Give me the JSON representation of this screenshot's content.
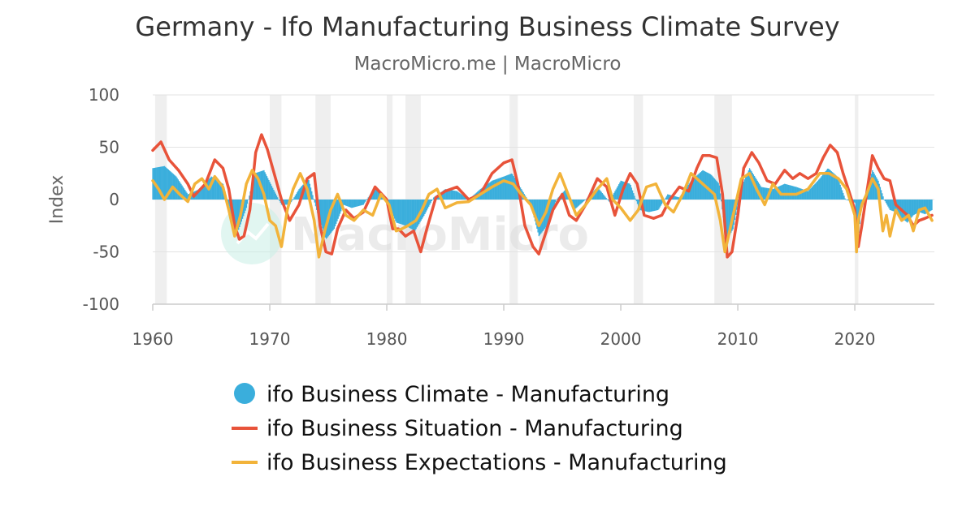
{
  "chart_data": {
    "type": "line",
    "title": "Germany - Ifo Manufacturing Business Climate Survey",
    "subtitle": "MacroMicro.me | MacroMicro",
    "watermark": "MacroMicro",
    "ylabel": "Index",
    "xlabel": "",
    "xlim": [
      1960,
      2026.8
    ],
    "ylim": [
      -100,
      100
    ],
    "yticks": [
      100,
      50,
      0,
      -50,
      -100
    ],
    "xticks": [
      1960,
      1970,
      1980,
      1990,
      2000,
      2010,
      2020
    ],
    "grid": true,
    "legend_position": "bottom",
    "recession_shading": [
      [
        1960.2,
        1961.2
      ],
      [
        1970.0,
        1971.0
      ],
      [
        1973.9,
        1975.2
      ],
      [
        1980.0,
        1980.5
      ],
      [
        1981.6,
        1982.9
      ],
      [
        1990.5,
        1991.2
      ],
      [
        2001.1,
        2001.9
      ],
      [
        2008.0,
        2009.5
      ],
      [
        2020.0,
        2020.3
      ]
    ],
    "series": [
      {
        "name": "ifo Business Climate - Manufacturing",
        "style": "column",
        "color": "#3aaedc",
        "x": [
          1960.0,
          1961.0,
          1962.0,
          1963.0,
          1964.0,
          1965.0,
          1966.0,
          1966.7,
          1967.3,
          1968.0,
          1968.7,
          1969.5,
          1970.3,
          1971.0,
          1971.7,
          1972.5,
          1973.3,
          1974.0,
          1974.8,
          1975.5,
          1976.3,
          1977.0,
          1978.0,
          1979.0,
          1980.0,
          1980.8,
          1981.6,
          1982.4,
          1983.2,
          1984.0,
          1985.0,
          1986.0,
          1987.0,
          1988.0,
          1989.0,
          1990.0,
          1990.7,
          1991.5,
          1992.3,
          1993.0,
          1993.7,
          1994.5,
          1995.3,
          1996.0,
          1997.0,
          1998.0,
          1999.0,
          2000.0,
          2000.8,
          2001.6,
          2002.4,
          2003.2,
          2004.0,
          2005.0,
          2006.0,
          2007.0,
          2007.7,
          2008.4,
          2009.0,
          2009.6,
          2010.3,
          2011.0,
          2012.0,
          2013.0,
          2014.0,
          2015.0,
          2016.0,
          2017.0,
          2017.7,
          2018.5,
          2019.2,
          2020.0,
          2020.3,
          2020.6,
          2021.0,
          2021.5,
          2022.0,
          2022.5,
          2023.0,
          2023.5,
          2024.0,
          2024.5,
          2025.0,
          2025.5,
          2026.0,
          2026.6
        ],
        "values": [
          30,
          32,
          22,
          5,
          10,
          22,
          15,
          -15,
          -30,
          -8,
          25,
          28,
          10,
          -5,
          -5,
          10,
          20,
          -10,
          -38,
          -28,
          -5,
          -8,
          -5,
          12,
          0,
          -22,
          -25,
          -30,
          -15,
          2,
          10,
          8,
          0,
          10,
          18,
          22,
          25,
          10,
          -5,
          -35,
          -25,
          0,
          10,
          -10,
          0,
          12,
          -2,
          18,
          15,
          -10,
          -12,
          -10,
          5,
          2,
          18,
          28,
          24,
          15,
          -40,
          -28,
          12,
          30,
          12,
          10,
          15,
          12,
          8,
          20,
          30,
          22,
          0,
          -3,
          -35,
          -5,
          8,
          28,
          18,
          0,
          -10,
          -12,
          -18,
          -22,
          -15,
          -12,
          -14,
          -10
        ]
      },
      {
        "name": "ifo Business Situation - Manufacturing",
        "style": "line",
        "color": "#e8533a",
        "x": [
          1960.0,
          1960.7,
          1961.4,
          1962.2,
          1963.0,
          1963.5,
          1964.5,
          1965.3,
          1966.0,
          1966.5,
          1967.0,
          1967.4,
          1967.8,
          1968.3,
          1968.8,
          1969.3,
          1969.8,
          1970.5,
          1971.0,
          1971.7,
          1972.5,
          1973.2,
          1973.8,
          1974.3,
          1974.8,
          1975.3,
          1975.8,
          1976.5,
          1977.2,
          1978.0,
          1979.0,
          1980.0,
          1980.5,
          1981.0,
          1981.6,
          1982.3,
          1982.9,
          1983.5,
          1984.2,
          1985.0,
          1986.0,
          1987.0,
          1988.0,
          1989.0,
          1990.0,
          1990.7,
          1991.2,
          1991.8,
          1992.5,
          1993.0,
          1993.5,
          1994.2,
          1995.0,
          1995.6,
          1996.2,
          1997.0,
          1998.0,
          1998.8,
          1999.5,
          2000.2,
          2000.8,
          2001.4,
          2002.0,
          2002.8,
          2003.5,
          2004.2,
          2005.0,
          2005.8,
          2006.5,
          2007.0,
          2007.6,
          2008.2,
          2008.7,
          2009.1,
          2009.5,
          2010.0,
          2010.5,
          2011.2,
          2011.8,
          2012.5,
          2013.2,
          2014.0,
          2014.7,
          2015.3,
          2016.0,
          2016.7,
          2017.3,
          2017.9,
          2018.5,
          2019.0,
          2019.5,
          2020.0,
          2020.3,
          2020.6,
          2021.0,
          2021.5,
          2022.0,
          2022.5,
          2023.0,
          2023.5,
          2024.0,
          2024.5,
          2025.0,
          2025.5,
          2026.0,
          2026.6
        ],
        "values": [
          47,
          55,
          38,
          28,
          15,
          3,
          15,
          38,
          30,
          10,
          -25,
          -38,
          -35,
          -10,
          45,
          62,
          48,
          20,
          0,
          -20,
          -5,
          20,
          25,
          -25,
          -50,
          -52,
          -28,
          -10,
          -18,
          -12,
          12,
          0,
          -28,
          -28,
          -35,
          -30,
          -50,
          -25,
          2,
          8,
          12,
          0,
          5,
          25,
          35,
          38,
          15,
          -25,
          -45,
          -52,
          -35,
          -10,
          5,
          -15,
          -20,
          -5,
          20,
          12,
          -15,
          10,
          25,
          15,
          -15,
          -18,
          -15,
          0,
          12,
          8,
          30,
          42,
          42,
          40,
          5,
          -55,
          -50,
          -15,
          30,
          45,
          35,
          18,
          15,
          28,
          20,
          25,
          20,
          25,
          40,
          52,
          45,
          25,
          8,
          -10,
          -45,
          -25,
          5,
          42,
          30,
          20,
          18,
          -5,
          -10,
          -15,
          -25,
          -20,
          -18,
          -15
        ]
      },
      {
        "name": "ifo Business Expectations - Manufacturing",
        "style": "line",
        "color": "#f2b33a",
        "x": [
          1960.0,
          1960.5,
          1961.0,
          1961.7,
          1962.3,
          1963.0,
          1963.6,
          1964.2,
          1964.8,
          1965.3,
          1966.0,
          1966.5,
          1967.0,
          1967.5,
          1968.0,
          1968.5,
          1969.0,
          1969.5,
          1970.0,
          1970.5,
          1971.0,
          1971.5,
          1972.0,
          1972.6,
          1973.2,
          1973.8,
          1974.2,
          1974.7,
          1975.2,
          1975.8,
          1976.5,
          1977.2,
          1978.0,
          1978.8,
          1979.5,
          1980.2,
          1980.8,
          1981.3,
          1981.8,
          1982.5,
          1983.0,
          1983.6,
          1984.3,
          1985.0,
          1986.0,
          1987.0,
          1988.0,
          1989.0,
          1990.0,
          1990.8,
          1991.5,
          1992.3,
          1993.0,
          1993.6,
          1994.2,
          1994.8,
          1995.5,
          1996.2,
          1997.0,
          1998.0,
          1998.8,
          1999.3,
          2000.0,
          2000.8,
          2001.5,
          2002.2,
          2003.0,
          2003.8,
          2004.5,
          2005.3,
          2006.0,
          2007.0,
          2008.0,
          2008.5,
          2008.9,
          2009.3,
          2009.8,
          2010.3,
          2011.0,
          2011.6,
          2012.3,
          2013.0,
          2013.7,
          2014.4,
          2015.0,
          2016.0,
          2017.0,
          2017.8,
          2018.6,
          2019.3,
          2020.0,
          2020.15,
          2020.3,
          2020.6,
          2021.0,
          2021.5,
          2022.0,
          2022.4,
          2022.7,
          2023.0,
          2023.5,
          2024.0,
          2024.6,
          2025.0,
          2025.5,
          2026.0,
          2026.6
        ],
        "values": [
          18,
          10,
          0,
          12,
          5,
          -2,
          15,
          20,
          10,
          22,
          12,
          -10,
          -35,
          -15,
          15,
          28,
          20,
          5,
          -20,
          -25,
          -45,
          -10,
          10,
          25,
          10,
          -20,
          -55,
          -30,
          -10,
          5,
          -15,
          -20,
          -10,
          -15,
          5,
          -5,
          -30,
          -28,
          -25,
          -20,
          -10,
          5,
          10,
          -8,
          -3,
          -2,
          5,
          12,
          18,
          15,
          5,
          -5,
          -25,
          -12,
          10,
          25,
          5,
          -15,
          -5,
          10,
          20,
          0,
          -8,
          -20,
          -10,
          12,
          15,
          -5,
          -12,
          5,
          25,
          15,
          5,
          -20,
          -50,
          -30,
          -5,
          20,
          25,
          10,
          -5,
          15,
          5,
          5,
          5,
          10,
          25,
          25,
          20,
          10,
          -15,
          -50,
          -20,
          -5,
          5,
          20,
          10,
          -30,
          -15,
          -35,
          -10,
          -20,
          -15,
          -30,
          -10,
          -8,
          -20
        ]
      }
    ]
  }
}
